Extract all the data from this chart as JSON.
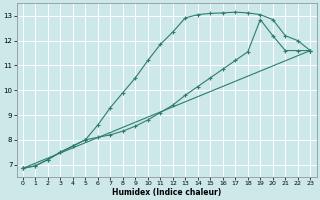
{
  "xlabel": "Humidex (Indice chaleur)",
  "bg_color": "#cce8e8",
  "grid_color": "#ffffff",
  "line_color": "#2e7d6e",
  "xlim": [
    -0.5,
    23.5
  ],
  "ylim": [
    6.5,
    13.5
  ],
  "xticks": [
    0,
    1,
    2,
    3,
    4,
    5,
    6,
    7,
    8,
    9,
    10,
    11,
    12,
    13,
    14,
    15,
    16,
    17,
    18,
    19,
    20,
    21,
    22,
    23
  ],
  "yticks": [
    7,
    8,
    9,
    10,
    11,
    12,
    13
  ],
  "series1_x": [
    0,
    1,
    2,
    3,
    4,
    5,
    6,
    7,
    8,
    9,
    10,
    11,
    12,
    13,
    14,
    15,
    16,
    17,
    18,
    19,
    20,
    21,
    22,
    23
  ],
  "series1_y": [
    6.85,
    6.95,
    7.2,
    7.5,
    7.75,
    8.0,
    8.6,
    9.3,
    9.9,
    10.5,
    11.2,
    11.85,
    12.35,
    12.92,
    13.05,
    13.1,
    13.12,
    13.15,
    13.12,
    13.05,
    12.85,
    12.2,
    12.0,
    11.6
  ],
  "series2_x": [
    0,
    1,
    2,
    3,
    4,
    5,
    6,
    7,
    8,
    9,
    10,
    11,
    12,
    13,
    14,
    15,
    16,
    17,
    18,
    19,
    20,
    21,
    22,
    23
  ],
  "series2_y": [
    6.85,
    6.95,
    7.2,
    7.5,
    7.75,
    8.0,
    8.1,
    8.2,
    8.35,
    8.55,
    8.8,
    9.1,
    9.4,
    9.8,
    10.15,
    10.5,
    10.85,
    11.2,
    11.55,
    12.85,
    12.2,
    11.6,
    11.6,
    11.6
  ],
  "series3_x": [
    0,
    23
  ],
  "series3_y": [
    6.85,
    11.6
  ]
}
